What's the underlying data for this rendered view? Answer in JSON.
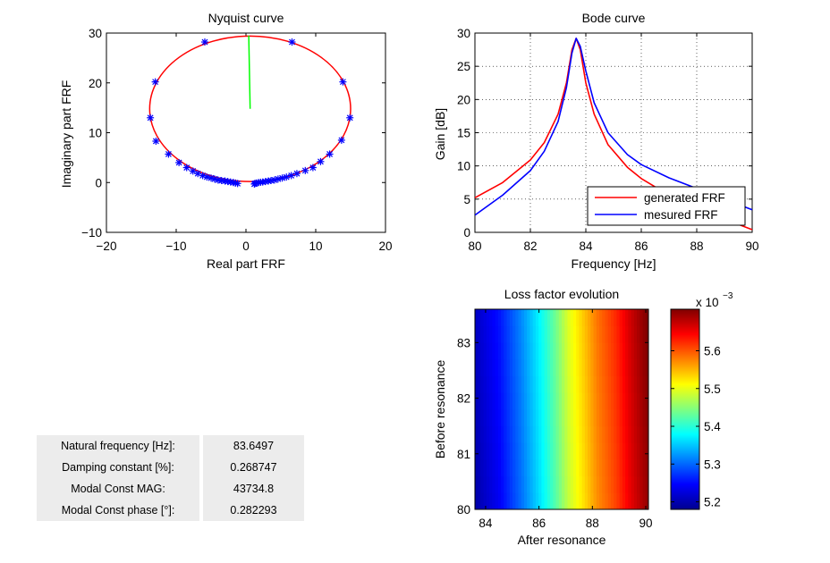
{
  "figure": {
    "info_panel": {
      "rows": [
        {
          "label": "Natural frequency [Hz]:",
          "value": "83.6497"
        },
        {
          "label": "Damping constant [%]:",
          "value": "0.268747"
        },
        {
          "label": "Modal Const MAG:",
          "value": "43734.8"
        },
        {
          "label": "Modal Const phase [°]:",
          "value": "0.282293"
        }
      ]
    },
    "colors": {
      "red": "#ff0000",
      "blue": "#0000ff",
      "green": "#00ff00"
    }
  },
  "chart_data": [
    {
      "type": "scatter",
      "title": "Nyquist curve",
      "xlabel": "Real part FRF",
      "ylabel": "Imaginary part FRF",
      "xlim": [
        -20,
        20
      ],
      "ylim": [
        -10,
        30
      ],
      "xticks": [
        -20,
        -10,
        0,
        10,
        20
      ],
      "yticks": [
        -10,
        0,
        10,
        20,
        30
      ],
      "xtick_labels": [
        "−20",
        "−10",
        "0",
        "10",
        "20"
      ],
      "ytick_labels": [
        "−10",
        "0",
        "10",
        "20",
        "30"
      ],
      "grid": false,
      "fitted_circle": {
        "center": [
          0.6,
          14.8
        ],
        "radius_x": 14.4,
        "radius_y": 14.6,
        "color": "#ff0000"
      },
      "radius_line": {
        "from": [
          0.4,
          29.5
        ],
        "to": [
          0.6,
          14.8
        ],
        "color": "#00ff00"
      },
      "series": [
        {
          "marker": "*",
          "color": "#0000ff",
          "points": [
            [
              -13.7,
              13
            ],
            [
              -13.0,
              20.2
            ],
            [
              -5.9,
              28.2
            ],
            [
              6.6,
              28.2
            ],
            [
              13.9,
              20.2
            ],
            [
              14.9,
              13
            ],
            [
              13.7,
              8.5
            ],
            [
              12.0,
              5.7
            ],
            [
              10.7,
              4.2
            ],
            [
              9.6,
              3.0
            ],
            [
              8.5,
              2.4
            ],
            [
              7.3,
              1.8
            ],
            [
              6.5,
              1.4
            ],
            [
              5.8,
              1.1
            ],
            [
              5.2,
              0.9
            ],
            [
              4.6,
              0.7
            ],
            [
              4.1,
              0.5
            ],
            [
              3.6,
              0.4
            ],
            [
              3.2,
              0.3
            ],
            [
              2.8,
              0.2
            ],
            [
              2.4,
              0.1
            ],
            [
              2.1,
              0.05
            ],
            [
              1.8,
              0.0
            ],
            [
              1.5,
              -0.1
            ],
            [
              1.3,
              -0.2
            ],
            [
              1.2,
              -0.3
            ],
            [
              -12.9,
              8.3
            ],
            [
              -11.1,
              5.7
            ],
            [
              -9.6,
              4.0
            ],
            [
              -8.5,
              3.0
            ],
            [
              -7.6,
              2.3
            ],
            [
              -6.9,
              1.8
            ],
            [
              -6.2,
              1.4
            ],
            [
              -5.6,
              1.1
            ],
            [
              -5.0,
              0.9
            ],
            [
              -4.5,
              0.7
            ],
            [
              -4.0,
              0.5
            ],
            [
              -3.5,
              0.4
            ],
            [
              -3.0,
              0.3
            ],
            [
              -2.6,
              0.2
            ],
            [
              -2.2,
              0.1
            ],
            [
              -1.8,
              0.0
            ],
            [
              -1.5,
              -0.1
            ],
            [
              -1.2,
              -0.2
            ]
          ]
        }
      ]
    },
    {
      "type": "line",
      "title": "Bode curve",
      "xlabel": "Frequency  [Hz]",
      "ylabel": "Gain  [dB]",
      "xlim": [
        80,
        90
      ],
      "ylim": [
        0,
        30
      ],
      "xticks": [
        80,
        82,
        84,
        86,
        88,
        90
      ],
      "yticks": [
        0,
        5,
        10,
        15,
        20,
        25,
        30
      ],
      "grid": true,
      "legend": "bottom-right",
      "series": [
        {
          "name": "generated FRF",
          "color": "#ff0000",
          "points": [
            [
              80,
              5.2
            ],
            [
              81,
              7.5
            ],
            [
              82,
              10.9
            ],
            [
              82.5,
              13.5
            ],
            [
              83,
              17.8
            ],
            [
              83.3,
              22.5
            ],
            [
              83.5,
              27.5
            ],
            [
              83.65,
              29.2
            ],
            [
              83.8,
              27.5
            ],
            [
              84,
              22.5
            ],
            [
              84.3,
              17.8
            ],
            [
              84.8,
              13.2
            ],
            [
              85.5,
              9.8
            ],
            [
              86,
              8.1
            ],
            [
              87,
              5.6
            ],
            [
              88,
              3.7
            ],
            [
              89,
              2.0
            ],
            [
              90,
              0.4
            ]
          ]
        },
        {
          "name": "mesured FRF",
          "color": "#0000ff",
          "points": [
            [
              80,
              2.6
            ],
            [
              81,
              5.6
            ],
            [
              82,
              9.3
            ],
            [
              82.5,
              12.2
            ],
            [
              83,
              16.7
            ],
            [
              83.3,
              21.8
            ],
            [
              83.5,
              27.0
            ],
            [
              83.65,
              29.2
            ],
            [
              83.8,
              28.0
            ],
            [
              84,
              24.3
            ],
            [
              84.3,
              19.5
            ],
            [
              84.8,
              15.0
            ],
            [
              85.5,
              11.7
            ],
            [
              86,
              10.2
            ],
            [
              87,
              8.2
            ],
            [
              88,
              6.6
            ],
            [
              89,
              5.0
            ],
            [
              90,
              3.4
            ]
          ]
        }
      ]
    },
    {
      "type": "heatmap",
      "title": "Loss factor evolution",
      "xlabel": "After resonance",
      "ylabel": "Before resonance",
      "xlim": [
        83.6,
        90.1
      ],
      "ylim": [
        80,
        83.6
      ],
      "xticks": [
        84,
        86,
        88,
        90
      ],
      "yticks": [
        80,
        81,
        82,
        83
      ],
      "colormap": "jet",
      "colorbar": {
        "range": [
          5.18,
          5.71
        ],
        "ticks": [
          5.2,
          5.3,
          5.4,
          5.5,
          5.6
        ],
        "multiplier": "x 10",
        "exponent": "−3"
      },
      "column_values": [
        [
          83.6,
          5.2
        ],
        [
          84.5,
          5.24
        ],
        [
          85.3,
          5.3
        ],
        [
          86.0,
          5.36
        ],
        [
          86.6,
          5.42
        ],
        [
          87.1,
          5.48
        ],
        [
          87.6,
          5.52
        ],
        [
          88.2,
          5.57
        ],
        [
          88.9,
          5.61
        ],
        [
          89.5,
          5.66
        ],
        [
          90.1,
          5.7
        ]
      ],
      "row_effect": {
        "top_increase": 0.015
      }
    }
  ]
}
